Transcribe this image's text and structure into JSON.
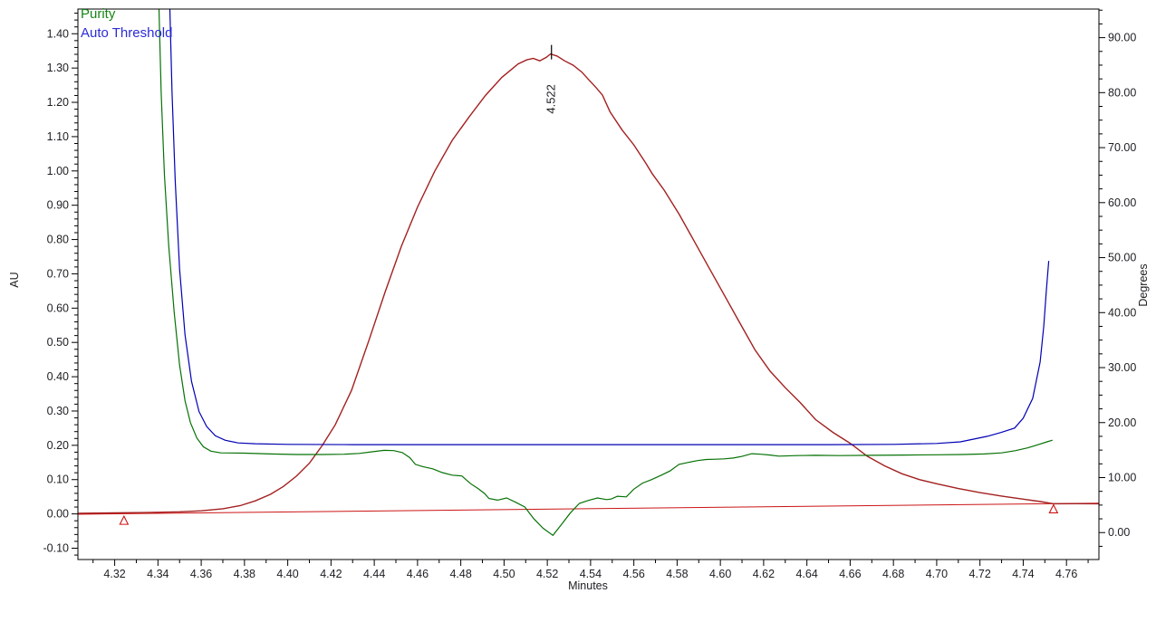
{
  "chart_data": {
    "type": "line",
    "title": "Peak purity plot",
    "legend": [
      {
        "label": "Purity",
        "color": "#158515"
      },
      {
        "label": "Auto Threshold",
        "color": "#2b2bd6"
      }
    ],
    "x": {
      "title": "Minutes",
      "min": 4.303,
      "max": 4.775,
      "ticks": [
        "4.32",
        "4.34",
        "4.36",
        "4.38",
        "4.40",
        "4.42",
        "4.44",
        "4.46",
        "4.48",
        "4.50",
        "4.52",
        "4.54",
        "4.56",
        "4.58",
        "4.60",
        "4.62",
        "4.64",
        "4.66",
        "4.68",
        "4.70",
        "4.72",
        "4.74",
        "4.76"
      ],
      "minor_start": 4.31,
      "minor_end": 4.77,
      "minor_step": 0.01
    },
    "y_left": {
      "title": "AU",
      "min": -0.133,
      "max": 1.472,
      "ticks": [
        "-0.10",
        "0.00",
        "0.10",
        "0.20",
        "0.30",
        "0.40",
        "0.50",
        "0.60",
        "0.70",
        "0.80",
        "0.90",
        "1.00",
        "1.10",
        "1.20",
        "1.30",
        "1.40"
      ],
      "minor_start": -0.12,
      "minor_end": 1.46,
      "minor_step": 0.02,
      "major_step": 0.1
    },
    "y_right": {
      "title": "Degrees",
      "min": -4.9,
      "max": 95.2,
      "ticks": [
        "0.00",
        "10.00",
        "20.00",
        "30.00",
        "40.00",
        "50.00",
        "60.00",
        "70.00",
        "80.00",
        "90.00"
      ],
      "minor_start": -2.5,
      "minor_end": 95.0,
      "minor_step": 2.5,
      "major_step": 10
    },
    "annotations": [
      {
        "type": "peak-apex",
        "label": "4.522",
        "t": 4.5215,
        "value": 1.341,
        "axis": "left"
      }
    ],
    "markers": [
      {
        "type": "integration-start-triangle",
        "t": 4.3243,
        "value": -0.004
      },
      {
        "type": "integration-end-triangle",
        "t": 4.754,
        "value": 0.0295
      }
    ],
    "series": [
      {
        "name": "integration-baseline",
        "axis": "left",
        "color": "#cc1414",
        "width": 1,
        "points": [
          [
            4.303,
            -0.001
          ],
          [
            4.775,
            0.0315
          ]
        ]
      },
      {
        "name": "chromatogram",
        "axis": "left",
        "color": "#a32020",
        "width": 1.4,
        "points": [
          [
            4.303,
            0.002
          ],
          [
            4.32,
            0.003
          ],
          [
            4.335,
            0.004
          ],
          [
            4.35,
            0.006
          ],
          [
            4.36,
            0.009
          ],
          [
            4.37,
            0.015
          ],
          [
            4.378,
            0.024
          ],
          [
            4.385,
            0.038
          ],
          [
            4.392,
            0.057
          ],
          [
            4.398,
            0.08
          ],
          [
            4.404,
            0.11
          ],
          [
            4.41,
            0.148
          ],
          [
            4.416,
            0.2
          ],
          [
            4.422,
            0.26
          ],
          [
            4.4295,
            0.36
          ],
          [
            4.4375,
            0.505
          ],
          [
            4.445,
            0.647
          ],
          [
            4.4525,
            0.78
          ],
          [
            4.46,
            0.895
          ],
          [
            4.468,
            1.0
          ],
          [
            4.476,
            1.089
          ],
          [
            4.484,
            1.159
          ],
          [
            4.4915,
            1.221
          ],
          [
            4.499,
            1.273
          ],
          [
            4.5065,
            1.312
          ],
          [
            4.5105,
            1.324
          ],
          [
            4.5135,
            1.328
          ],
          [
            4.5165,
            1.321
          ],
          [
            4.5195,
            1.331
          ],
          [
            4.5215,
            1.341
          ],
          [
            4.5245,
            1.335
          ],
          [
            4.528,
            1.321
          ],
          [
            4.532,
            1.308
          ],
          [
            4.536,
            1.288
          ],
          [
            4.539,
            1.267
          ],
          [
            4.5425,
            1.243
          ],
          [
            4.5455,
            1.221
          ],
          [
            4.549,
            1.172
          ],
          [
            4.5545,
            1.12
          ],
          [
            4.56,
            1.076
          ],
          [
            4.5655,
            1.023
          ],
          [
            4.5685,
            0.992
          ],
          [
            4.574,
            0.944
          ],
          [
            4.581,
            0.873
          ],
          [
            4.588,
            0.794
          ],
          [
            4.595,
            0.715
          ],
          [
            4.602,
            0.636
          ],
          [
            4.609,
            0.557
          ],
          [
            4.616,
            0.478
          ],
          [
            4.623,
            0.416
          ],
          [
            4.63,
            0.368
          ],
          [
            4.637,
            0.324
          ],
          [
            4.644,
            0.275
          ],
          [
            4.652,
            0.238
          ],
          [
            4.66,
            0.206
          ],
          [
            4.668,
            0.168
          ],
          [
            4.676,
            0.14
          ],
          [
            4.684,
            0.117
          ],
          [
            4.692,
            0.1
          ],
          [
            4.7,
            0.088
          ],
          [
            4.71,
            0.074
          ],
          [
            4.72,
            0.062
          ],
          [
            4.73,
            0.052
          ],
          [
            4.74,
            0.043
          ],
          [
            4.748,
            0.036
          ],
          [
            4.754,
            0.0295
          ],
          [
            4.764,
            0.03
          ],
          [
            4.775,
            0.0295
          ]
        ]
      },
      {
        "name": "purity",
        "axis": "right",
        "color": "#067206",
        "width": 1.2,
        "points": [
          [
            4.3405,
            95.2
          ],
          [
            4.3415,
            80
          ],
          [
            4.343,
            65
          ],
          [
            4.345,
            52
          ],
          [
            4.3475,
            40
          ],
          [
            4.35,
            30.5
          ],
          [
            4.3525,
            24
          ],
          [
            4.355,
            20
          ],
          [
            4.358,
            17.2
          ],
          [
            4.361,
            15.6
          ],
          [
            4.3645,
            14.8
          ],
          [
            4.369,
            14.5
          ],
          [
            4.38,
            14.45
          ],
          [
            4.392,
            14.3
          ],
          [
            4.404,
            14.2
          ],
          [
            4.416,
            14.2
          ],
          [
            4.426,
            14.25
          ],
          [
            4.433,
            14.4
          ],
          [
            4.439,
            14.7
          ],
          [
            4.4445,
            14.95
          ],
          [
            4.449,
            14.9
          ],
          [
            4.453,
            14.55
          ],
          [
            4.4565,
            13.6
          ],
          [
            4.459,
            12.4
          ],
          [
            4.4625,
            12.0
          ],
          [
            4.467,
            11.6
          ],
          [
            4.4715,
            10.9
          ],
          [
            4.476,
            10.45
          ],
          [
            4.4805,
            10.3
          ],
          [
            4.4845,
            8.9
          ],
          [
            4.488,
            8.0
          ],
          [
            4.491,
            7.1
          ],
          [
            4.493,
            6.2
          ],
          [
            4.497,
            5.9
          ],
          [
            4.5012,
            6.3
          ],
          [
            4.5054,
            5.5
          ],
          [
            4.5096,
            4.65
          ],
          [
            4.5138,
            2.5
          ],
          [
            4.518,
            0.8
          ],
          [
            4.5226,
            -0.5
          ],
          [
            4.5264,
            1.4
          ],
          [
            4.5306,
            3.55
          ],
          [
            4.5348,
            5.3
          ],
          [
            4.539,
            5.85
          ],
          [
            4.5432,
            6.3
          ],
          [
            4.5474,
            6.0
          ],
          [
            4.5495,
            6.1
          ],
          [
            4.5524,
            6.6
          ],
          [
            4.5565,
            6.5
          ],
          [
            4.56,
            7.9
          ],
          [
            4.564,
            9.0
          ],
          [
            4.568,
            9.6
          ],
          [
            4.5725,
            10.4
          ],
          [
            4.5767,
            11.2
          ],
          [
            4.5809,
            12.4
          ],
          [
            4.585,
            12.75
          ],
          [
            4.5895,
            13.1
          ],
          [
            4.5935,
            13.3
          ],
          [
            4.598,
            13.35
          ],
          [
            4.6018,
            13.4
          ],
          [
            4.606,
            13.55
          ],
          [
            4.61,
            13.85
          ],
          [
            4.6145,
            14.35
          ],
          [
            4.6187,
            14.25
          ],
          [
            4.623,
            14.1
          ],
          [
            4.627,
            13.9
          ],
          [
            4.6354,
            14.0
          ],
          [
            4.6438,
            14.05
          ],
          [
            4.655,
            14.0
          ],
          [
            4.67,
            14.05
          ],
          [
            4.685,
            14.1
          ],
          [
            4.7,
            14.15
          ],
          [
            4.712,
            14.2
          ],
          [
            4.722,
            14.3
          ],
          [
            4.73,
            14.5
          ],
          [
            4.7365,
            14.9
          ],
          [
            4.742,
            15.4
          ],
          [
            4.747,
            16.0
          ],
          [
            4.751,
            16.5
          ],
          [
            4.7535,
            16.8
          ]
        ]
      },
      {
        "name": "auto-threshold",
        "axis": "right",
        "color": "#0000b4",
        "width": 1.2,
        "points": [
          [
            4.3455,
            95.2
          ],
          [
            4.3465,
            80
          ],
          [
            4.348,
            64
          ],
          [
            4.35,
            48
          ],
          [
            4.3525,
            36
          ],
          [
            4.3555,
            27.5
          ],
          [
            4.359,
            22
          ],
          [
            4.3625,
            19.3
          ],
          [
            4.3665,
            17.6
          ],
          [
            4.371,
            16.8
          ],
          [
            4.377,
            16.3
          ],
          [
            4.385,
            16.15
          ],
          [
            4.4,
            16.05
          ],
          [
            4.43,
            16.0
          ],
          [
            4.46,
            16.0
          ],
          [
            4.5,
            16.0
          ],
          [
            4.55,
            16.0
          ],
          [
            4.6,
            16.0
          ],
          [
            4.65,
            16.0
          ],
          [
            4.68,
            16.05
          ],
          [
            4.7,
            16.2
          ],
          [
            4.711,
            16.5
          ],
          [
            4.7234,
            17.5
          ],
          [
            4.7297,
            18.2
          ],
          [
            4.736,
            19.0
          ],
          [
            4.74,
            20.8
          ],
          [
            4.7444,
            24.4
          ],
          [
            4.7478,
            31.0
          ],
          [
            4.7495,
            37.5
          ],
          [
            4.7507,
            44.1
          ],
          [
            4.7518,
            49.4
          ]
        ]
      }
    ]
  }
}
